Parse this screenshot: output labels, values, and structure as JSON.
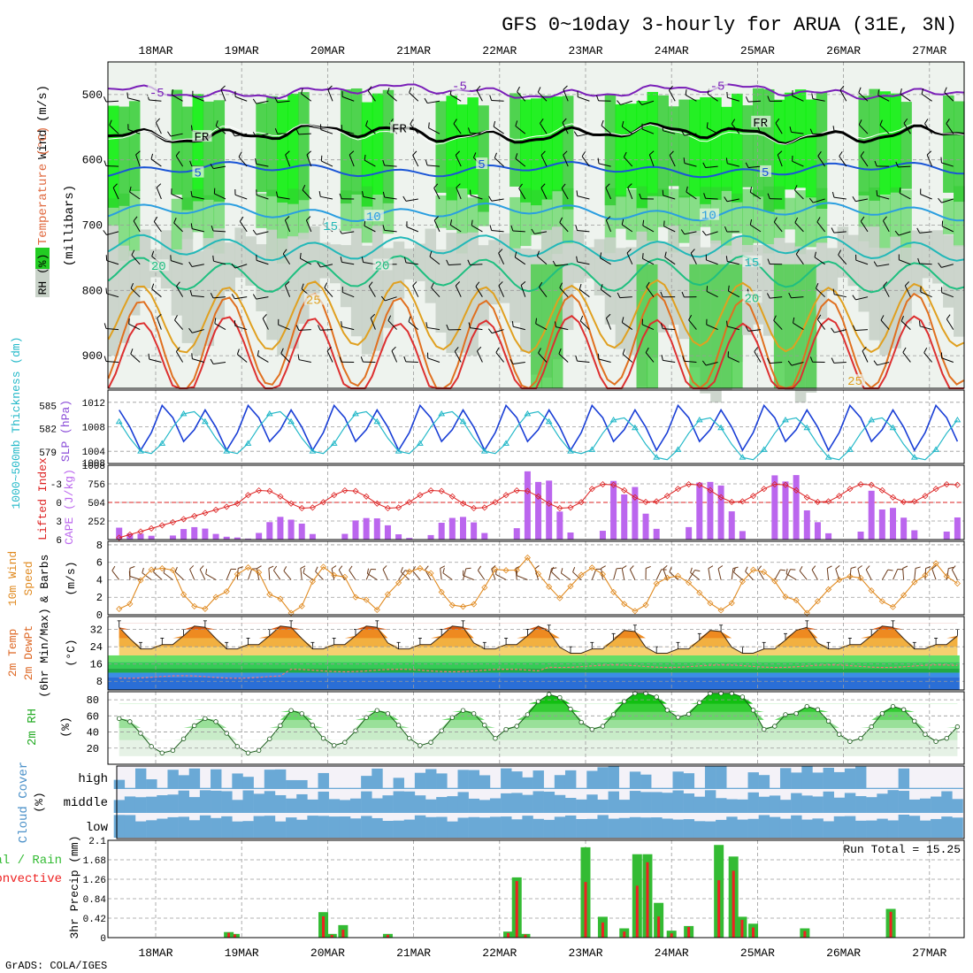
{
  "title": "GFS 0~10day 3-hourly for ARUA (31E, 3N)",
  "credit": "GrADS: COLA/IGES",
  "dates": [
    "18MAR",
    "19MAR",
    "20MAR",
    "21MAR",
    "22MAR",
    "23MAR",
    "24MAR",
    "25MAR",
    "26MAR",
    "27MAR"
  ],
  "colors": {
    "grid": "#9a9a9a",
    "rh_green": "#33cc33",
    "rh_bright": "#00ee00",
    "rh_gray": "#c8d2c8",
    "slp": "#1a3fd6",
    "thick": "#22b8c8",
    "li": "#dd2222",
    "cape": "#bb66ee",
    "wind": "#e08a20",
    "cloud": "#6aa9d6",
    "precip_total": "#33bb33",
    "precip_conv": "#ee2222"
  },
  "chart_data": [
    {
      "type": "heatmap",
      "name": "upper",
      "ylabel_parts": [
        "Wind (m/s)",
        "Temperature (°C)",
        "RH (%)",
        "(millibars)"
      ],
      "ylabel_wind": "Wind (m/s)",
      "ylabel_temp": "Temperature (°C)",
      "ylabel_rh": "RH (%)",
      "ylabel_mb": "(millibars)",
      "y_ticks": [
        500,
        600,
        700,
        800,
        900
      ],
      "ylim": [
        450,
        950
      ],
      "x": [
        "18MAR",
        "19MAR",
        "20MAR",
        "21MAR",
        "22MAR",
        "23MAR",
        "24MAR",
        "25MAR",
        "26MAR",
        "27MAR"
      ],
      "isotherm_labels": [
        {
          "text": "-5",
          "t": 0.03,
          "p": 500
        },
        {
          "text": "-5",
          "t": 3.55,
          "p": 490
        },
        {
          "text": "-5",
          "t": 6.55,
          "p": 490
        },
        {
          "text": "FR",
          "t": 0.55,
          "p": 568
        },
        {
          "text": "FR",
          "t": 2.85,
          "p": 555
        },
        {
          "text": "FR",
          "t": 7.05,
          "p": 546
        },
        {
          "text": "5",
          "t": 0.55,
          "p": 623
        },
        {
          "text": "5",
          "t": 3.85,
          "p": 610
        },
        {
          "text": "5",
          "t": 7.15,
          "p": 622
        },
        {
          "text": "10",
          "t": 2.55,
          "p": 690
        },
        {
          "text": "10",
          "t": 6.45,
          "p": 688
        },
        {
          "text": "15",
          "t": 2.05,
          "p": 705
        },
        {
          "text": "15",
          "t": 6.95,
          "p": 760
        },
        {
          "text": "20",
          "t": 0.05,
          "p": 766
        },
        {
          "text": "20",
          "t": 2.65,
          "p": 765
        },
        {
          "text": "20",
          "t": 6.95,
          "p": 815
        },
        {
          "text": "25",
          "t": 1.85,
          "p": 818
        },
        {
          "text": "25",
          "t": 8.15,
          "p": 942
        }
      ]
    },
    {
      "type": "line",
      "name": "slp_thickness",
      "ylabel_left": "1000~500mb Thickness (dm)",
      "ylabel_right": "SLP (hPa)",
      "y_ticks_left": [
        579,
        582,
        585
      ],
      "y_ticks_right": [
        1004,
        1008,
        1012
      ],
      "ylim_left": [
        577.5,
        587
      ],
      "ylim_right": [
        1002,
        1014
      ]
    },
    {
      "type": "bar",
      "name": "cape_li",
      "ylabel_left": "Lifted Index",
      "ylabel_right": "CAPE (J/kg)",
      "y_ticks_left": [
        -3,
        0,
        3,
        6
      ],
      "y_ticks_right": [
        252,
        504,
        756,
        1008
      ],
      "ylim_li": [
        -6,
        6
      ],
      "ylim_cape": [
        0,
        1008
      ]
    },
    {
      "type": "line",
      "name": "wind10m",
      "ylabel": "10m Wind Speed & Barbs (m/s)",
      "ylabel_parts": [
        "10m Wind",
        "Speed",
        "& Barbs",
        "(m/s)"
      ],
      "y_ticks": [
        0,
        2,
        4,
        6,
        8
      ],
      "ylim": [
        0,
        8.4
      ]
    },
    {
      "type": "area",
      "name": "temp2m",
      "ylabel": "2m Temp 2m DewPt (6hr Min/Max) (°C)",
      "ylabel_parts": [
        "2m Temp",
        "2m DewPt",
        "(6hr Min/Max)",
        "(°C)"
      ],
      "y_ticks": [
        8,
        16,
        24,
        32
      ],
      "ylim": [
        4,
        38
      ]
    },
    {
      "type": "area",
      "name": "rh2m",
      "ylabel": "2m RH (%)",
      "ylabel_parts": [
        "2m RH",
        "(%)"
      ],
      "y_ticks": [
        20,
        40,
        60,
        80
      ],
      "ylim": [
        0,
        90
      ]
    },
    {
      "type": "heatmap",
      "name": "cloud",
      "ylabel": "Cloud Cover (%)",
      "ylabel_parts": [
        "Cloud Cover",
        "(%)"
      ],
      "levels": [
        "high",
        "middle",
        "low"
      ]
    },
    {
      "type": "bar",
      "name": "precip",
      "ylabel": "3hr Precip (mm)",
      "legend": "Total / Rain Convective",
      "legend_total": "Total / Rain",
      "legend_conv": "Convective",
      "y_ticks": [
        0,
        0.42,
        0.84,
        1.26,
        1.68,
        2.1
      ],
      "ylim": [
        0,
        2.1
      ],
      "run_total_label": "Run Total = 15.25",
      "run_total": 15.25
    }
  ]
}
